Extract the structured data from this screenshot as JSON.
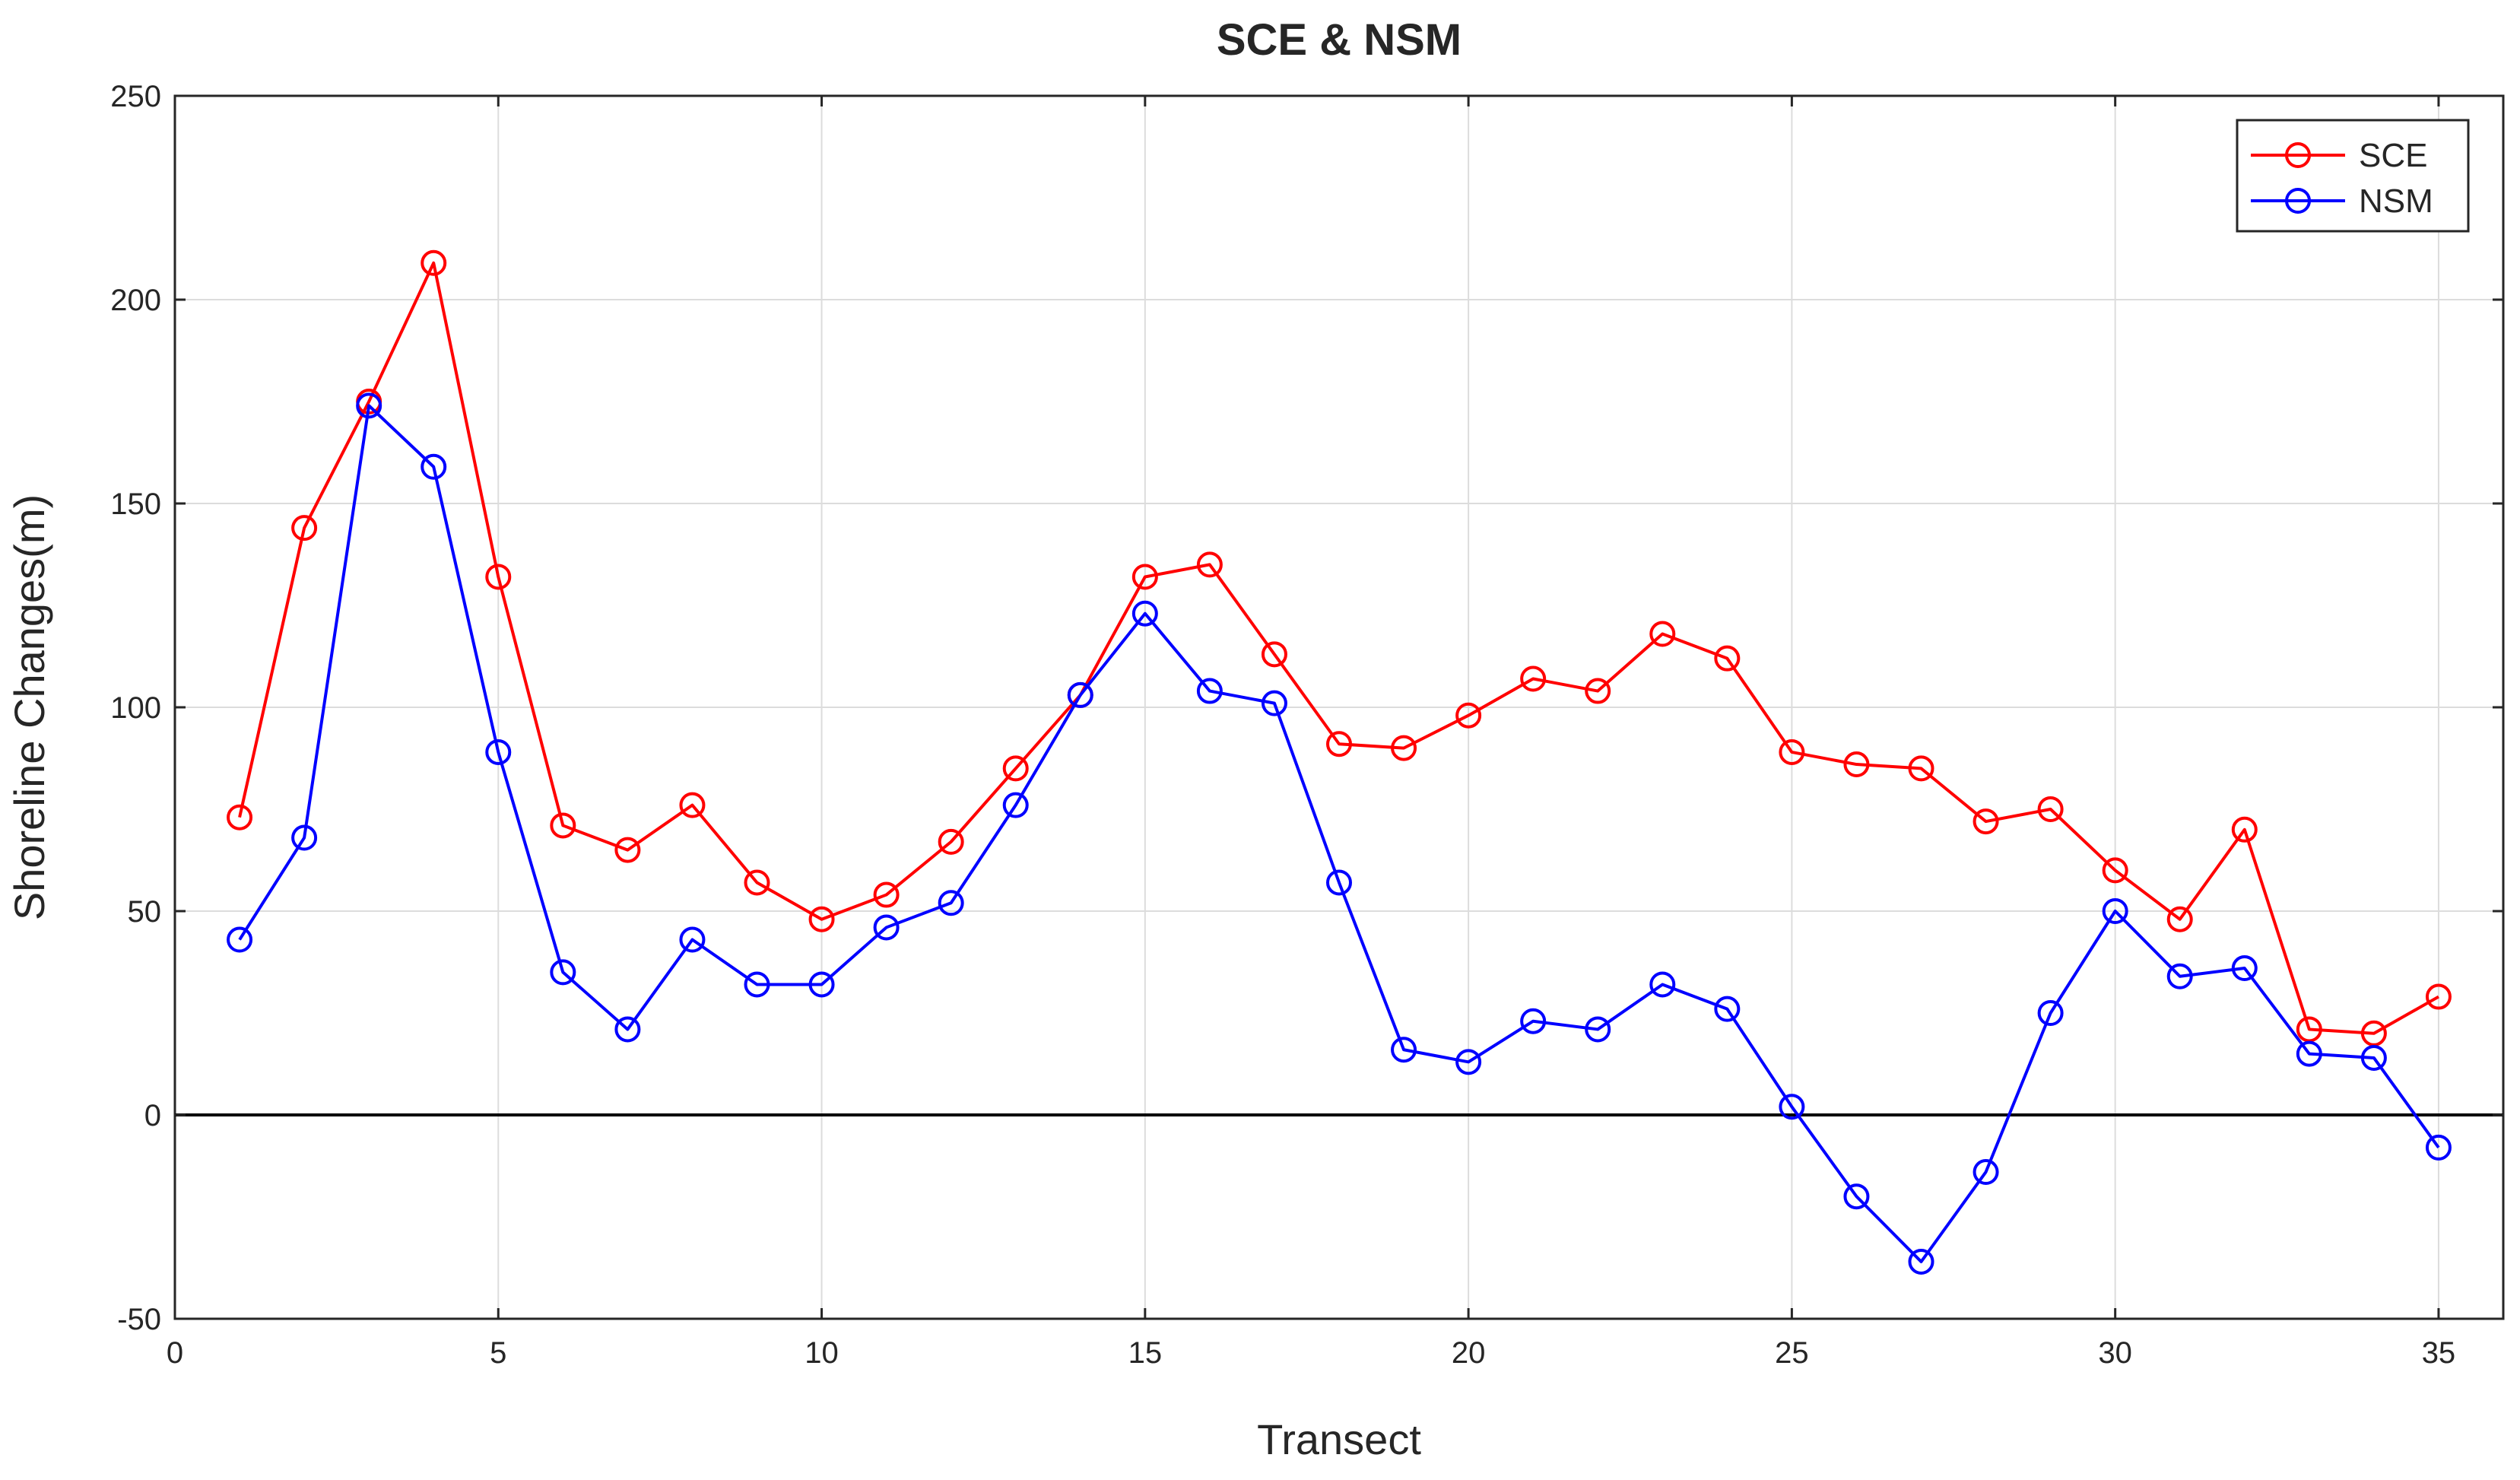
{
  "chart_data": {
    "type": "line",
    "title": "SCE & NSM",
    "xlabel": "Transect",
    "ylabel": "Shoreline Changes(m)",
    "xlim": [
      0,
      36
    ],
    "ylim": [
      -50,
      250
    ],
    "xticks": [
      0,
      5,
      10,
      15,
      20,
      25,
      30,
      35
    ],
    "yticks": [
      -50,
      0,
      50,
      100,
      150,
      200,
      250
    ],
    "grid": true,
    "legend_position": "top-right",
    "reference_line_y": 0,
    "x": [
      1,
      2,
      3,
      4,
      5,
      6,
      7,
      8,
      9,
      10,
      11,
      12,
      13,
      14,
      15,
      16,
      17,
      18,
      19,
      20,
      21,
      22,
      23,
      24,
      25,
      26,
      27,
      28,
      29,
      30,
      31,
      32,
      33,
      34,
      35
    ],
    "series": [
      {
        "name": "SCE",
        "color": "#ff0000",
        "marker": "circle",
        "values": [
          73,
          144,
          175,
          209,
          132,
          71,
          65,
          76,
          57,
          48,
          54,
          67,
          85,
          103,
          132,
          135,
          113,
          91,
          90,
          98,
          107,
          104,
          118,
          112,
          89,
          86,
          85,
          72,
          75,
          60,
          48,
          70,
          21,
          20,
          29
        ]
      },
      {
        "name": "NSM",
        "color": "#0000ff",
        "marker": "circle",
        "values": [
          43,
          68,
          174,
          159,
          89,
          35,
          21,
          43,
          32,
          32,
          46,
          52,
          76,
          103,
          123,
          104,
          101,
          57,
          16,
          13,
          23,
          21,
          32,
          26,
          2,
          -20,
          -36,
          -14,
          25,
          50,
          34,
          36,
          15,
          14,
          -8
        ]
      }
    ]
  }
}
